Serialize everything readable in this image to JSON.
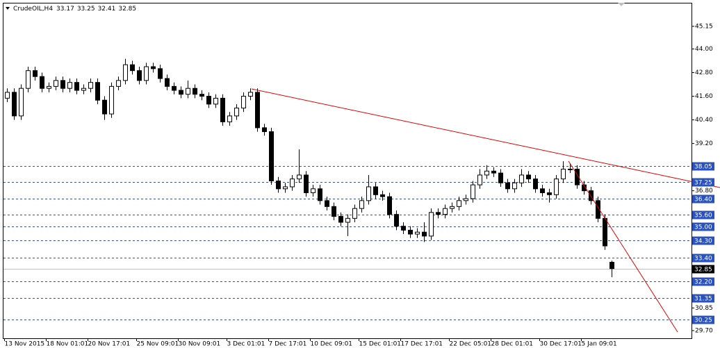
{
  "chart_data": {
    "type": "candlestick",
    "title": "CrudeOIL,H4",
    "quote": [
      33.17,
      33.25,
      32.41,
      32.85
    ],
    "categories": [
      "13 Nov 2015",
      null,
      null,
      null,
      null,
      null,
      "18 Nov 01:01",
      null,
      null,
      null,
      null,
      null,
      "20 Nov 17:01",
      null,
      null,
      null,
      null,
      null,
      null,
      "25 Nov 09:01",
      null,
      null,
      null,
      null,
      null,
      "30 Nov 09:01",
      null,
      null,
      null,
      null,
      null,
      null,
      "3 Dec 01:01",
      null,
      null,
      null,
      null,
      null,
      "7 Dec 17:01",
      null,
      null,
      null,
      null,
      null,
      "10 Dec 09:01",
      null,
      null,
      null,
      null,
      null,
      null,
      "15 Dec 01:01",
      null,
      null,
      null,
      null,
      null,
      "17 Dec 17:01",
      null,
      null,
      null,
      null,
      null,
      null,
      "22 Dec 05:01",
      null,
      null,
      null,
      null,
      null,
      "28 Dec 01:01",
      null,
      null,
      null,
      null,
      null,
      null,
      "30 Dec 17:01",
      null,
      null,
      null,
      null,
      null,
      "5 Jan 09:01",
      null,
      null,
      null,
      null
    ],
    "open": [
      41.5,
      41.8,
      40.6,
      42.0,
      42.9,
      42.6,
      42.0,
      42.1,
      42.4,
      42.0,
      42.3,
      41.9,
      42.0,
      42.3,
      41.4,
      40.7,
      42.1,
      42.4,
      43.2,
      42.9,
      42.4,
      43.1,
      43.0,
      42.5,
      42.1,
      41.9,
      41.7,
      42.0,
      41.7,
      41.6,
      41.2,
      41.5,
      40.3,
      40.6,
      41.0,
      41.6,
      41.8,
      40.0,
      39.8,
      37.3,
      36.9,
      37.0,
      37.4,
      37.6,
      36.7,
      36.9,
      36.3,
      36.0,
      35.5,
      35.2,
      35.4,
      35.9,
      36.3,
      37.0,
      36.6,
      36.5,
      35.6,
      35.0,
      34.8,
      34.6,
      34.7,
      34.5,
      35.7,
      35.6,
      35.9,
      36.0,
      36.3,
      36.4,
      37.1,
      37.6,
      37.8,
      37.7,
      37.2,
      36.9,
      37.2,
      37.6,
      37.4,
      36.9,
      36.7,
      36.6,
      37.4,
      37.9,
      37.9,
      37.1,
      36.8,
      36.3,
      35.4,
      33.17
    ],
    "high": [
      42.0,
      42.0,
      42.2,
      43.1,
      43.1,
      42.8,
      42.3,
      42.6,
      42.6,
      42.5,
      42.5,
      42.2,
      42.5,
      42.5,
      41.6,
      42.3,
      42.6,
      43.5,
      43.4,
      43.1,
      43.3,
      43.3,
      43.2,
      42.7,
      42.3,
      42.1,
      42.4,
      42.2,
      41.9,
      41.8,
      41.7,
      41.7,
      40.8,
      41.2,
      41.8,
      42.0,
      42.0,
      40.2,
      40.0,
      37.5,
      37.2,
      37.6,
      38.9,
      37.8,
      37.1,
      37.1,
      36.5,
      36.2,
      35.7,
      35.6,
      36.1,
      36.5,
      37.6,
      37.2,
      36.8,
      36.7,
      35.8,
      35.2,
      35.0,
      34.9,
      35.2,
      35.9,
      35.9,
      36.1,
      36.2,
      36.5,
      36.6,
      37.3,
      37.9,
      38.1,
      38.0,
      37.9,
      37.4,
      37.4,
      37.9,
      37.8,
      37.6,
      37.1,
      36.9,
      37.6,
      38.3,
      38.2,
      38.1,
      37.3,
      37.0,
      36.5,
      35.6,
      33.25
    ],
    "low": [
      41.3,
      40.4,
      40.4,
      41.8,
      42.4,
      41.8,
      41.8,
      41.9,
      41.8,
      41.8,
      41.7,
      41.7,
      41.8,
      41.2,
      40.4,
      40.5,
      41.9,
      42.2,
      42.7,
      42.2,
      42.2,
      42.8,
      42.3,
      41.9,
      41.7,
      41.5,
      41.5,
      41.5,
      41.4,
      41.0,
      41.0,
      40.1,
      40.1,
      40.4,
      40.8,
      41.4,
      39.8,
      39.6,
      37.1,
      36.7,
      36.7,
      36.8,
      37.2,
      36.5,
      36.5,
      36.1,
      35.8,
      35.3,
      35.0,
      34.5,
      35.2,
      35.7,
      36.1,
      36.4,
      36.3,
      35.4,
      34.8,
      34.6,
      34.4,
      34.4,
      34.2,
      34.3,
      35.4,
      35.4,
      35.7,
      35.8,
      36.1,
      36.2,
      36.9,
      37.4,
      37.5,
      37.0,
      36.7,
      36.7,
      37.0,
      37.2,
      36.7,
      36.5,
      36.2,
      36.4,
      37.2,
      37.7,
      36.9,
      36.6,
      36.1,
      35.2,
      33.8,
      32.41
    ],
    "close": [
      41.8,
      40.6,
      42.0,
      42.9,
      42.6,
      42.0,
      42.1,
      42.4,
      42.0,
      42.3,
      41.9,
      42.0,
      42.3,
      41.4,
      40.7,
      42.1,
      42.4,
      43.2,
      42.9,
      42.4,
      43.1,
      43.0,
      42.5,
      42.1,
      41.9,
      41.7,
      42.0,
      41.7,
      41.6,
      41.2,
      41.5,
      40.3,
      40.6,
      41.0,
      41.6,
      41.8,
      40.0,
      39.8,
      37.3,
      36.9,
      37.0,
      37.4,
      37.6,
      36.7,
      36.9,
      36.3,
      36.0,
      35.5,
      35.2,
      35.4,
      35.9,
      36.3,
      37.0,
      36.6,
      36.5,
      35.6,
      35.0,
      34.8,
      34.6,
      34.7,
      34.5,
      35.7,
      35.6,
      35.9,
      36.0,
      36.3,
      36.4,
      37.1,
      37.6,
      37.8,
      37.7,
      37.2,
      36.9,
      37.2,
      37.6,
      37.4,
      36.9,
      36.7,
      36.6,
      37.4,
      37.9,
      37.9,
      37.1,
      36.8,
      36.3,
      35.4,
      34.0,
      32.85
    ],
    "ylim": [
      29.31,
      46.31
    ],
    "yticks": [
      45.15,
      {
        "value": 44,
        "label": "44.00"
      },
      {
        "value": 42.8,
        "label": "42.80"
      },
      {
        "value": 41.6,
        "label": "41.60"
      },
      {
        "value": 40.4,
        "label": "40.40"
      },
      {
        "value": 39.2,
        "label": "39.20"
      },
      {
        "value": 36.8,
        "label": "36.80"
      },
      30.85,
      {
        "value": 29.7,
        "label": "29.70"
      }
    ],
    "levels": [
      38.05,
      37.25,
      {
        "value": 36.4,
        "label": "36.40"
      },
      {
        "value": 35.6,
        "label": "35.60"
      },
      {
        "value": 35,
        "label": "35.00"
      },
      {
        "value": 34.3,
        "label": "34.30"
      },
      {
        "value": 33.4,
        "label": "33.40"
      },
      {
        "value": 32.2,
        "label": "32.20"
      },
      31.35,
      30.25
    ],
    "last_price": 32.85,
    "up_color": "#ffffff",
    "down_color": "#000000",
    "level_color": "#2a52be"
  }
}
